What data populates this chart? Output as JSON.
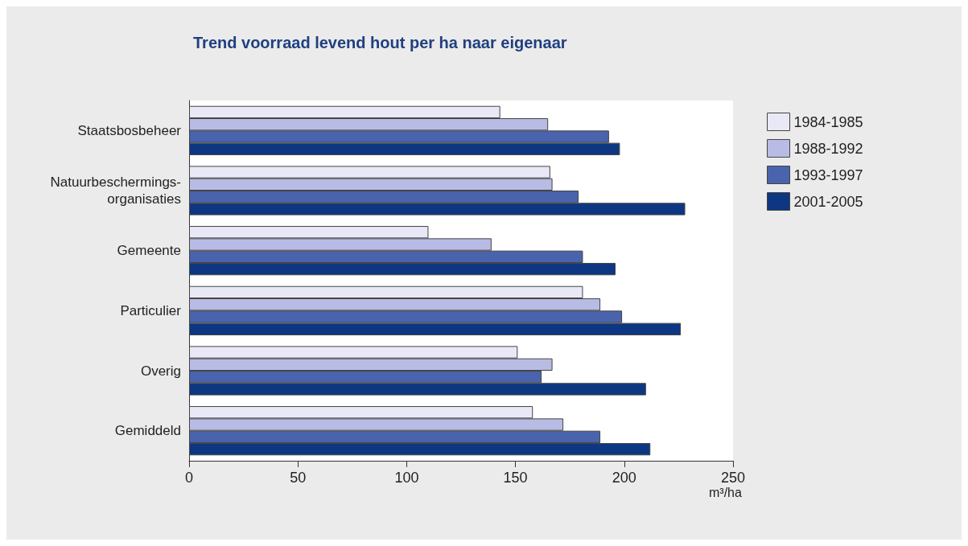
{
  "chart_data": {
    "type": "bar",
    "orientation": "horizontal",
    "title": "Trend voorraad levend hout per ha naar eigenaar",
    "xlabel": "m³/ha",
    "categories": [
      "Staatsbosbeheer",
      "Natuurbeschermings-\norganisaties",
      "Gemeente",
      "Particulier",
      "Overig",
      "Gemiddeld"
    ],
    "series": [
      {
        "name": "1984-1985",
        "color": "#e8e8f6",
        "values": [
          143,
          166,
          110,
          181,
          151,
          158
        ]
      },
      {
        "name": "1988-1992",
        "color": "#b8bce4",
        "values": [
          165,
          167,
          139,
          189,
          167,
          172
        ]
      },
      {
        "name": "1993-1997",
        "color": "#4a63ad",
        "values": [
          193,
          179,
          181,
          199,
          162,
          189
        ]
      },
      {
        "name": "2001-2005",
        "color": "#0d3782",
        "values": [
          198,
          228,
          196,
          226,
          210,
          212
        ]
      }
    ],
    "xlim": [
      0,
      250
    ],
    "xticks": [
      0,
      50,
      100,
      150,
      200,
      250
    ],
    "grid": false,
    "legend": "top right"
  }
}
